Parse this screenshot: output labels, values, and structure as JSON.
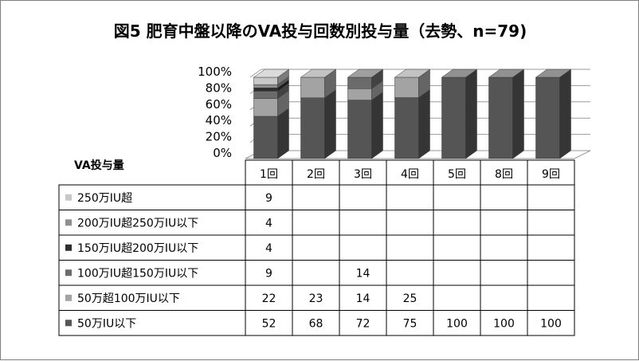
{
  "chart_data": {
    "type": "bar",
    "stacked": true,
    "percent_stacked": true,
    "three_d": true,
    "title": "図5 肥育中盤以降のVA投与回数別投与量（去勢、n=79)",
    "legend_title": "VA投与量",
    "categories": [
      "1回",
      "2回",
      "3回",
      "4回",
      "5回",
      "8回",
      "9回"
    ],
    "y_ticks": [
      "0%",
      "20%",
      "40%",
      "60%",
      "80%",
      "100%"
    ],
    "ylim": [
      0,
      100
    ],
    "grid": true,
    "series": [
      {
        "name": "250万IU超",
        "color": "#c8c8c8",
        "values": [
          9,
          null,
          null,
          null,
          null,
          null,
          null
        ]
      },
      {
        "name": "200万IU超250万IU以下",
        "color": "#8f8f8f",
        "values": [
          4,
          null,
          null,
          null,
          null,
          null,
          null
        ]
      },
      {
        "name": "150万IU超200万IU以下",
        "color": "#2e2e2e",
        "values": [
          4,
          null,
          null,
          null,
          null,
          null,
          null
        ]
      },
      {
        "name": "100万IU超150万IU以下",
        "color": "#6b6b6b",
        "values": [
          9,
          null,
          14,
          null,
          null,
          null,
          null
        ]
      },
      {
        "name": "50万超100万IU以下",
        "color": "#a3a3a3",
        "values": [
          22,
          23,
          14,
          25,
          null,
          null,
          null
        ]
      },
      {
        "name": "50万IU以下",
        "color": "#555555",
        "values": [
          52,
          68,
          72,
          75,
          100,
          100,
          100
        ]
      }
    ]
  }
}
